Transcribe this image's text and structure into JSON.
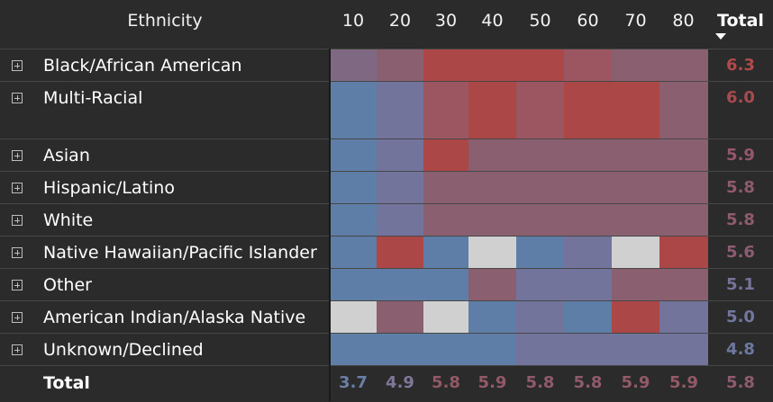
{
  "header": {
    "ethnicity_label": "Ethnicity",
    "columns": [
      "10",
      "20",
      "30",
      "40",
      "50",
      "60",
      "70",
      "80"
    ],
    "total_label": "Total"
  },
  "colors": {
    "blue": "#5e7ea8",
    "purple": "#72749b",
    "mauve": "#8a5f70",
    "rose": "#9b5661",
    "red": "#ac4747",
    "grey": "#d0d0d0"
  },
  "rows": [
    {
      "label": "Black/African American",
      "cells": [
        "purple2",
        "mauve",
        "red",
        "red",
        "red",
        "rose",
        "mauve",
        "mauve"
      ],
      "total": "6.3",
      "total_color": "#b14a4a"
    },
    {
      "label": "Multi-Racial",
      "cells": [
        "blue",
        "purple",
        "rose",
        "red",
        "rose",
        "red",
        "red",
        "mauve"
      ],
      "total": "6.0",
      "total_color": "#a84b4f"
    },
    {
      "label": "Asian",
      "cells": [
        "blue",
        "purple",
        "red",
        "mauve",
        "mauve",
        "mauve",
        "mauve",
        "mauve"
      ],
      "total": "5.9",
      "total_color": "#94576a"
    },
    {
      "label": "Hispanic/Latino",
      "cells": [
        "blue",
        "purple",
        "mauve",
        "mauve",
        "mauve",
        "mauve",
        "mauve",
        "mauve"
      ],
      "total": "5.8",
      "total_color": "#8e5a6e"
    },
    {
      "label": "White",
      "cells": [
        "blue",
        "purple",
        "mauve",
        "mauve",
        "mauve",
        "mauve",
        "mauve",
        "mauve"
      ],
      "total": "5.8",
      "total_color": "#8e5a6e"
    },
    {
      "label": "Native Hawaiian/Pacific Islander",
      "cells": [
        "blue",
        "red",
        "blue",
        "grey",
        "blue",
        "purple",
        "grey",
        "red"
      ],
      "total": "5.6",
      "total_color": "#8c5d72"
    },
    {
      "label": "Other",
      "cells": [
        "blue",
        "blue",
        "blue",
        "mauve",
        "purple",
        "purple",
        "mauve",
        "mauve"
      ],
      "total": "5.1",
      "total_color": "#76739a"
    },
    {
      "label": "American Indian/Alaska Native",
      "cells": [
        "grey",
        "mauve",
        "grey",
        "blue",
        "purple",
        "blue",
        "red",
        "purple"
      ],
      "total": "5.0",
      "total_color": "#73769e"
    },
    {
      "label": "Unknown/Declined",
      "cells": [
        "blue",
        "blue",
        "blue",
        "blue",
        "purple",
        "purple",
        "purple",
        "purple"
      ],
      "total": "4.8",
      "total_color": "#6c789f"
    }
  ],
  "footer": {
    "label": "Total",
    "values": [
      "3.7",
      "4.9",
      "5.8",
      "5.9",
      "5.8",
      "5.8",
      "5.9",
      "5.9"
    ],
    "value_colors": [
      "#6a7ea6",
      "#7f7699",
      "#915866",
      "#925a69",
      "#8f5a6c",
      "#8f5a6c",
      "#925a69",
      "#925a69"
    ],
    "total": "5.8",
    "total_color": "#8e5a6e"
  }
}
